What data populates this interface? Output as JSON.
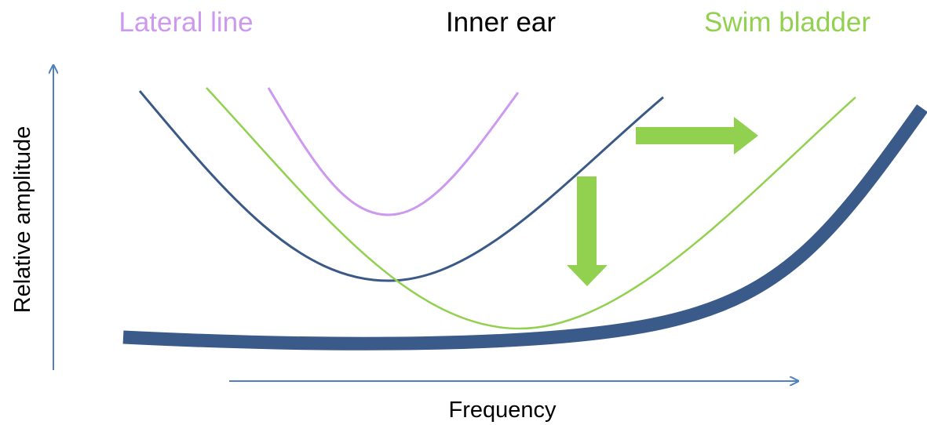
{
  "labels": {
    "lateral_line": "Lateral line",
    "inner_ear": "Inner ear",
    "swim_bladder": "Swim bladder"
  },
  "axes": {
    "y": "Relative amplitude",
    "x": "Frequency"
  }
}
